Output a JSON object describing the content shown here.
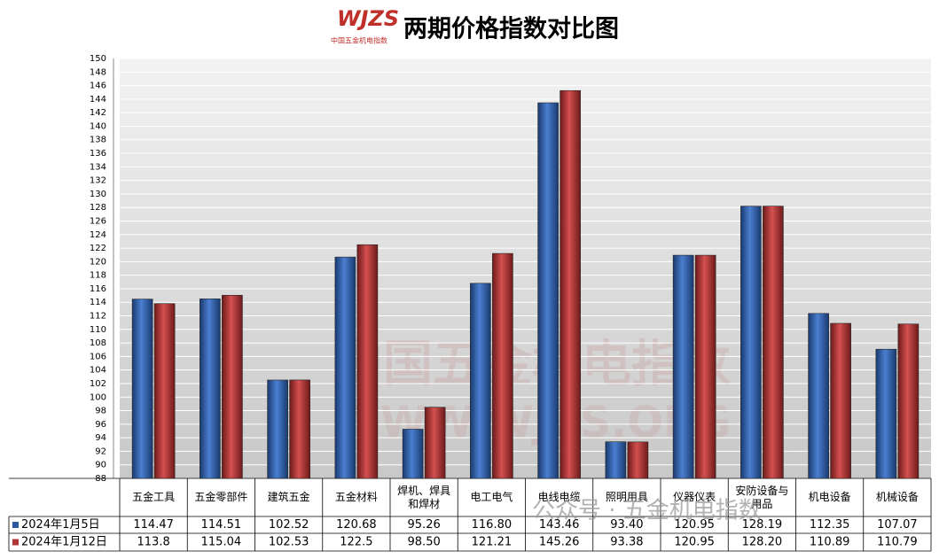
{
  "chart_data": {
    "type": "bar",
    "title": "两期价格指数对比图",
    "logo": "WJZS",
    "logo_subtitle": "中国五金机电指数",
    "watermark": "中国五金机电指数",
    "watermark_url": "WWW.WJZS.ORG",
    "wechat_watermark": "公众号 · 五金机电指数",
    "categories": [
      "五金工具",
      "五金零部件",
      "建筑五金",
      "五金材料",
      "焊机、焊具和焊材",
      "电工电气",
      "电线电缆",
      "照明用具",
      "仪器仪表",
      "安防设备与用品",
      "机电设备",
      "机械设备"
    ],
    "series": [
      {
        "name": "2024年1月5日",
        "color": "#2c5aa0",
        "values": [
          114.47,
          114.51,
          102.52,
          120.68,
          95.26,
          116.8,
          143.46,
          93.4,
          120.95,
          128.19,
          112.35,
          107.07
        ],
        "value_labels": [
          "114.47",
          "114.51",
          "102.52",
          "120.68",
          "95.26",
          "116.80",
          "143.46",
          "93.40",
          "120.95",
          "128.19",
          "112.35",
          "107.07"
        ]
      },
      {
        "name": "2024年1月12日",
        "color": "#b23434",
        "values": [
          113.8,
          115.04,
          102.53,
          122.5,
          98.5,
          121.21,
          145.26,
          93.38,
          120.95,
          128.2,
          110.89,
          110.79
        ],
        "value_labels": [
          "113.8",
          "115.04",
          "102.53",
          "122.5",
          "98.50",
          "121.21",
          "145.26",
          "93.38",
          "120.95",
          "128.20",
          "110.89",
          "110.79"
        ]
      }
    ],
    "ylim": [
      88,
      150
    ],
    "yticks": [
      88,
      90,
      92,
      94,
      96,
      98,
      100,
      102,
      104,
      106,
      108,
      110,
      112,
      114,
      116,
      118,
      120,
      122,
      124,
      126,
      128,
      130,
      132,
      134,
      136,
      138,
      140,
      142,
      144,
      146,
      148,
      150
    ],
    "grid": true
  }
}
